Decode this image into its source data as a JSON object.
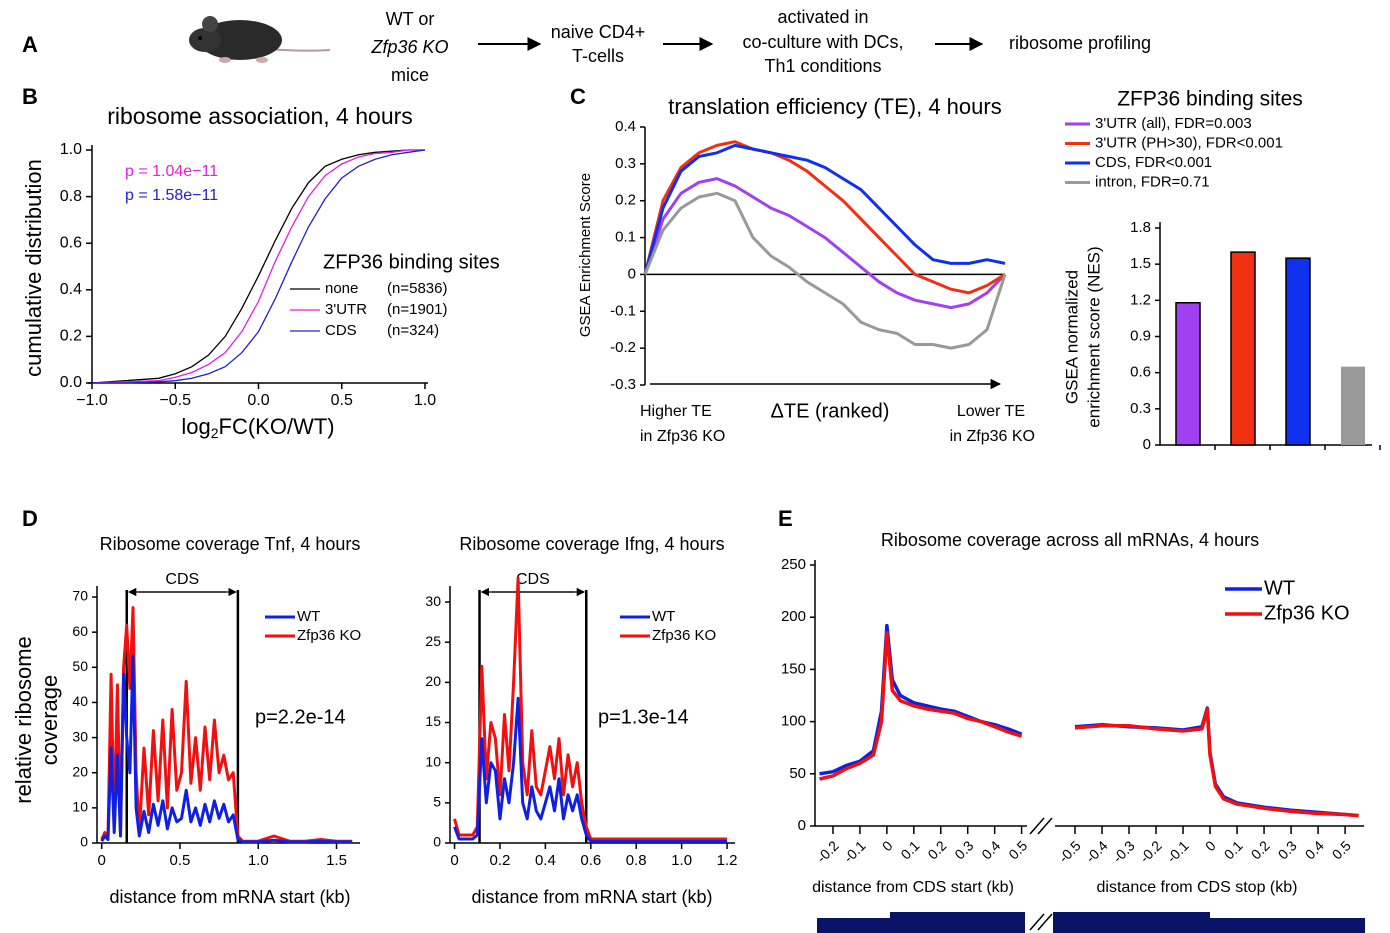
{
  "panel_a": {
    "label": "A",
    "step1": [
      "WT or",
      "Zfp36 KO",
      "mice"
    ],
    "step2": [
      "naive CD4+",
      "T-cells"
    ],
    "step3": [
      "activated in",
      "co-culture with DCs,",
      "Th1 conditions"
    ],
    "step4": "ribosome profiling"
  },
  "chart_data": [
    {
      "panel_label": "B",
      "type": "line",
      "title": "ribosome association, 4 hours",
      "x_label": [
        "log",
        "2",
        "FC(KO/WT)"
      ],
      "y_label": "cumulative distribution",
      "xlim": [
        -1,
        1
      ],
      "ylim": [
        0,
        1
      ],
      "xticks": [
        {
          "value": -1,
          "label": "−1.0"
        },
        {
          "value": -0.5,
          "label": "−0.5"
        },
        {
          "value": 0,
          "label": "0.0"
        },
        0.5,
        {
          "value": 1,
          "label": "1.0"
        }
      ],
      "yticks": [
        {
          "value": 0,
          "label": "0.0"
        },
        0.2,
        0.4,
        0.6,
        0.8,
        {
          "value": 1,
          "label": "1.0"
        }
      ],
      "annotations": [
        {
          "text": "p = 1.04e−11",
          "color": "#e020e0"
        },
        {
          "text": "p = 1.58e−11",
          "color": "#2020e0"
        }
      ],
      "legend_title": "ZFP36 binding sites",
      "x": [
        -1,
        -0.8,
        -0.6,
        -0.5,
        -0.4,
        -0.3,
        -0.2,
        -0.1,
        0,
        0.1,
        0.2,
        0.3,
        0.4,
        0.5,
        0.6,
        0.7,
        0.8,
        0.9,
        1
      ],
      "series": [
        {
          "name": "none",
          "count": "(n=5836)",
          "color": "#000000",
          "values": [
            0,
            0.01,
            0.02,
            0.04,
            0.07,
            0.12,
            0.2,
            0.32,
            0.46,
            0.61,
            0.75,
            0.86,
            0.93,
            0.96,
            0.98,
            0.99,
            0.995,
            1,
            1
          ]
        },
        {
          "name": "3'UTR",
          "count": "(n=1901)",
          "color": "#e020e0",
          "values": [
            0,
            0.005,
            0.01,
            0.025,
            0.045,
            0.08,
            0.13,
            0.22,
            0.35,
            0.52,
            0.67,
            0.8,
            0.89,
            0.94,
            0.97,
            0.985,
            0.99,
            1,
            1
          ]
        },
        {
          "name": "CDS",
          "count": "(n=324)",
          "color": "#2020d0",
          "values": [
            0,
            0,
            0.005,
            0.01,
            0.02,
            0.04,
            0.07,
            0.13,
            0.22,
            0.36,
            0.52,
            0.67,
            0.79,
            0.88,
            0.93,
            0.96,
            0.98,
            0.99,
            1
          ]
        }
      ]
    },
    {
      "panel_label": "C",
      "type": "line",
      "title": "translation efficiency (TE), 4 hours",
      "y_label": "GSEA Enrichment Score",
      "x_label": "ΔTE (ranked)",
      "x_left_label": [
        "Higher TE",
        "in Zfp36 KO"
      ],
      "x_right_label": [
        "Lower TE",
        "in Zfp36 KO"
      ],
      "ylim": [
        -0.3,
        0.4
      ],
      "yticks": [
        -0.3,
        -0.2,
        -0.1,
        0,
        0.1,
        0.2,
        0.3,
        0.4
      ],
      "legend_title": "ZFP36 binding sites",
      "series": [
        {
          "name": "3'UTR (all), FDR=0.003",
          "color": "#a040f0",
          "values": [
            0,
            0.15,
            0.22,
            0.25,
            0.26,
            0.24,
            0.21,
            0.18,
            0.16,
            0.13,
            0.1,
            0.06,
            0.02,
            -0.02,
            -0.05,
            -0.07,
            -0.08,
            -0.09,
            -0.08,
            -0.05,
            0
          ]
        },
        {
          "name": "3'UTR (PH>30), FDR<0.001",
          "color": "#f03010",
          "values": [
            0,
            0.2,
            0.29,
            0.33,
            0.35,
            0.36,
            0.34,
            0.33,
            0.31,
            0.28,
            0.24,
            0.2,
            0.15,
            0.1,
            0.05,
            0,
            -0.02,
            -0.04,
            -0.05,
            -0.03,
            0
          ]
        },
        {
          "name": "CDS, FDR<0.001",
          "color": "#1030f0",
          "values": [
            0,
            0.18,
            0.28,
            0.32,
            0.33,
            0.35,
            0.34,
            0.33,
            0.32,
            0.31,
            0.29,
            0.26,
            0.23,
            0.18,
            0.13,
            0.08,
            0.04,
            0.03,
            0.03,
            0.04,
            0.03
          ]
        },
        {
          "name": "intron, FDR=0.71",
          "color": "#999999",
          "values": [
            0,
            0.12,
            0.18,
            0.21,
            0.22,
            0.2,
            0.1,
            0.05,
            0.02,
            -0.02,
            -0.05,
            -0.08,
            -0.13,
            -0.15,
            -0.16,
            -0.19,
            -0.19,
            -0.2,
            -0.19,
            -0.15,
            0
          ]
        }
      ]
    },
    {
      "type": "bar",
      "y_label": [
        "GSEA normalized",
        "enrichment score (NES)"
      ],
      "categories": [
        null,
        null,
        null,
        null
      ],
      "values": [
        1.18,
        1.6,
        1.55,
        0.65
      ],
      "colors": [
        "#a040f0",
        "#f03010",
        "#1030f0",
        "#999999"
      ],
      "ylim": [
        0,
        1.8
      ],
      "yticks": [
        0,
        0.3,
        0.6,
        0.9,
        1.2,
        1.5,
        1.8
      ]
    },
    {
      "panel_label": "D",
      "type": "line",
      "title": "Ribosome coverage Tnf, 4 hours",
      "y_label": [
        "relative ribosome",
        "coverage"
      ],
      "x_label": "distance from mRNA start (kb)",
      "xlim": [
        -0.03,
        1.65
      ],
      "ylim": [
        0,
        72
      ],
      "xticks": [
        0,
        0.5,
        {
          "value": 1,
          "label": "1.0"
        },
        1.5
      ],
      "yticks": [
        0,
        10,
        20,
        30,
        40,
        50,
        60,
        70
      ],
      "cds_label": "CDS",
      "cds_start": 0.16,
      "cds_end": 0.87,
      "annotation": "p=2.2e-14",
      "x": [
        0,
        0.02,
        0.04,
        0.06,
        0.08,
        0.1,
        0.12,
        0.14,
        0.16,
        0.18,
        0.2,
        0.22,
        0.24,
        0.27,
        0.3,
        0.33,
        0.36,
        0.39,
        0.42,
        0.45,
        0.48,
        0.51,
        0.54,
        0.57,
        0.6,
        0.63,
        0.66,
        0.69,
        0.72,
        0.75,
        0.78,
        0.81,
        0.84,
        0.87,
        0.9,
        1.0,
        1.1,
        1.2,
        1.3,
        1.4,
        1.5,
        1.6
      ],
      "series": [
        {
          "name": "WT",
          "color": "#1020e0",
          "values": [
            0.5,
            2,
            1,
            27,
            3,
            25,
            2,
            48,
            30,
            20,
            53,
            10,
            2,
            9,
            3,
            11,
            5,
            12,
            4,
            10,
            6,
            7,
            15,
            6,
            10,
            5,
            11,
            6,
            12,
            7,
            11,
            6,
            8,
            1,
            0.3,
            0.3,
            0.8,
            0.3,
            0.3,
            0.5,
            0.3,
            0.3
          ]
        },
        {
          "name": "Zfp36 KO",
          "color": "#f01010",
          "values": [
            1,
            3,
            2,
            48,
            5,
            45,
            3,
            50,
            62,
            44,
            67,
            20,
            3,
            27,
            8,
            32,
            12,
            35,
            10,
            38,
            15,
            20,
            46,
            17,
            30,
            15,
            33,
            18,
            35,
            20,
            25,
            18,
            20,
            2,
            0.5,
            0.5,
            2,
            0.5,
            0.5,
            1,
            0.5,
            0.5
          ]
        }
      ]
    },
    {
      "type": "line",
      "title": "Ribosome coverage Ifng, 4 hours",
      "x_label": "distance from mRNA start (kb)",
      "xlim": [
        -0.02,
        1.235
      ],
      "ylim": [
        0,
        31.5
      ],
      "xticks": [
        0,
        0.2,
        0.4,
        0.6,
        0.8,
        {
          "value": 1,
          "label": "1.0"
        },
        1.2
      ],
      "yticks": [
        0,
        5,
        10,
        15,
        20,
        25,
        30
      ],
      "cds_label": "CDS",
      "cds_start": 0.11,
      "cds_end": 0.58,
      "annotation": "p=1.3e-14",
      "x": [
        0,
        0.02,
        0.04,
        0.06,
        0.08,
        0.1,
        0.12,
        0.14,
        0.16,
        0.18,
        0.2,
        0.22,
        0.24,
        0.26,
        0.28,
        0.3,
        0.32,
        0.34,
        0.36,
        0.38,
        0.4,
        0.42,
        0.44,
        0.46,
        0.48,
        0.5,
        0.52,
        0.54,
        0.56,
        0.58,
        0.6,
        0.7,
        0.8,
        0.9,
        1.0,
        1.1,
        1.2
      ],
      "series": [
        {
          "name": "WT",
          "color": "#1020e0",
          "values": [
            2,
            0.5,
            0.5,
            0.5,
            0.5,
            1,
            13,
            5,
            10,
            9,
            3,
            8,
            5,
            10,
            18,
            5,
            3,
            7,
            4,
            3,
            5,
            7,
            4,
            8,
            3,
            6,
            4,
            6,
            3,
            1,
            0.2,
            0.2,
            0.2,
            0.2,
            0.2,
            0.2,
            0.2
          ]
        },
        {
          "name": "Zfp36 KO",
          "color": "#f01010",
          "values": [
            3,
            1,
            1,
            1,
            1,
            2,
            22,
            8,
            15,
            13,
            6,
            16,
            9,
            20,
            33,
            10,
            6,
            14,
            7,
            6,
            9,
            12,
            8,
            13,
            6,
            11,
            7,
            10,
            5,
            2,
            0.5,
            0.5,
            0.5,
            0.5,
            0.5,
            0.5,
            0.5
          ]
        }
      ]
    },
    {
      "panel_label": "E",
      "type": "line",
      "title": "Ribosome coverage across all mRNAs, 4 hours",
      "ylim": [
        0,
        250
      ],
      "yticks": [
        0,
        50,
        100,
        150,
        200,
        250
      ],
      "series": [
        {
          "name": "WT",
          "color": "#1020e0"
        },
        {
          "name": "Zfp36 KO",
          "color": "#f01010"
        }
      ],
      "panels": [
        {
          "x_label": "distance from CDS start (kb)",
          "xlim": [
            -0.25,
            0.52
          ],
          "xticks": [
            -0.2,
            -0.1,
            0,
            0.1,
            0.2,
            0.3,
            0.4,
            0.5
          ],
          "x": [
            -0.25,
            -0.2,
            -0.15,
            -0.1,
            -0.05,
            -0.02,
            0,
            0.02,
            0.05,
            0.1,
            0.15,
            0.2,
            0.25,
            0.3,
            0.35,
            0.4,
            0.45,
            0.5
          ],
          "values": [
            [
              50,
              52,
              58,
              62,
              72,
              110,
              192,
              140,
              125,
              118,
              115,
              112,
              110,
              105,
              100,
              97,
              93,
              88
            ],
            [
              45,
              48,
              55,
              60,
              68,
              100,
              185,
              130,
              120,
              115,
              112,
              110,
              108,
              103,
              100,
              95,
              90,
              86
            ]
          ]
        },
        {
          "x_label": "distance from CDS stop (kb)",
          "xlim": [
            -0.5,
            0.57
          ],
          "xticks": [
            -0.5,
            -0.4,
            -0.3,
            -0.2,
            -0.1,
            0,
            0.1,
            0.2,
            0.3,
            0.4,
            0.5
          ],
          "x": [
            -0.5,
            -0.4,
            -0.3,
            -0.2,
            -0.1,
            -0.03,
            -0.01,
            0,
            0.02,
            0.05,
            0.1,
            0.15,
            0.2,
            0.3,
            0.4,
            0.5,
            0.55
          ],
          "values": [
            [
              95,
              97,
              95,
              94,
              92,
              95,
              113,
              70,
              40,
              28,
              22,
              20,
              18,
              15,
              13,
              11,
              10
            ],
            [
              94,
              96,
              96,
              93,
              91,
              93,
              112,
              68,
              38,
              26,
              21,
              19,
              17,
              14,
              12,
              11,
              10
            ]
          ]
        }
      ]
    }
  ]
}
